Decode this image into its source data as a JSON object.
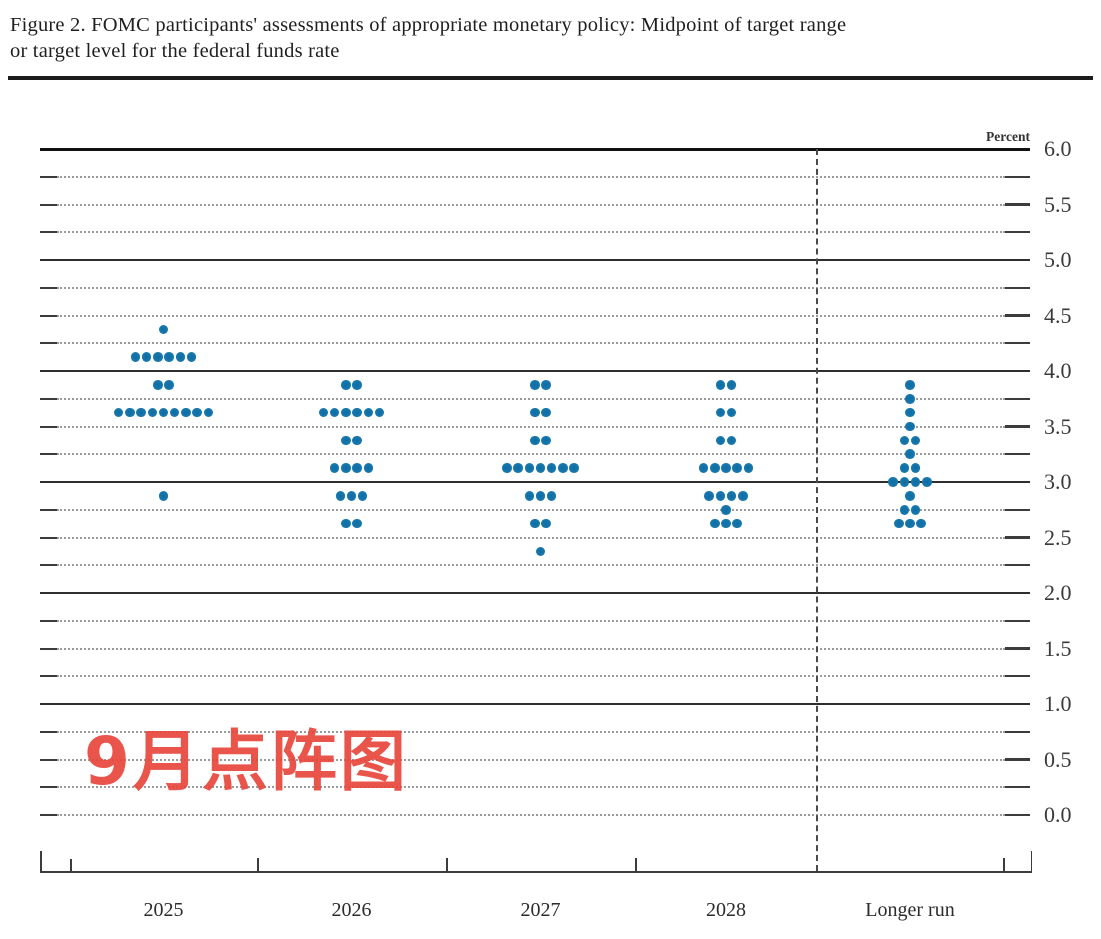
{
  "figure": {
    "title_line1": "Figure 2. FOMC participants' assessments of appropriate monetary policy: Midpoint of target range",
    "title_line2": "or target level for the federal funds rate"
  },
  "overlay": {
    "text": "9月点阵图",
    "color": "#e8463c"
  },
  "chart_data": {
    "type": "scatter",
    "title": "FOMC dot plot — midpoint of target range or target level for the federal funds rate",
    "unit_label": "Percent",
    "ylabel_side": "right",
    "ylim": [
      0.0,
      6.0
    ],
    "ytick_step": 0.5,
    "ytick_labels": [
      "6.0",
      "5.5",
      "5.0",
      "4.5",
      "4.0",
      "3.5",
      "3.0",
      "2.5",
      "2.0",
      "1.5",
      "1.0",
      "0.5",
      "0.0"
    ],
    "grid_step": 0.25,
    "solid_gridlines": [
      6.0,
      5.0,
      4.0,
      3.0,
      2.0,
      1.0
    ],
    "grid_on": true,
    "legend": "none",
    "separator_after_category": "2028",
    "dot_color": "#1a79ad",
    "categories": [
      "2025",
      "2026",
      "2027",
      "2028",
      "Longer run"
    ],
    "series": [
      {
        "category": "2025",
        "dots": [
          {
            "rate": 4.375,
            "count": 1
          },
          {
            "rate": 4.125,
            "count": 6
          },
          {
            "rate": 3.875,
            "count": 2
          },
          {
            "rate": 3.625,
            "count": 9
          },
          {
            "rate": 2.875,
            "count": 1
          }
        ]
      },
      {
        "category": "2026",
        "dots": [
          {
            "rate": 3.875,
            "count": 2
          },
          {
            "rate": 3.625,
            "count": 6
          },
          {
            "rate": 3.375,
            "count": 2
          },
          {
            "rate": 3.125,
            "count": 4
          },
          {
            "rate": 2.875,
            "count": 3
          },
          {
            "rate": 2.625,
            "count": 2
          }
        ]
      },
      {
        "category": "2027",
        "dots": [
          {
            "rate": 3.875,
            "count": 2
          },
          {
            "rate": 3.625,
            "count": 2
          },
          {
            "rate": 3.375,
            "count": 2
          },
          {
            "rate": 3.125,
            "count": 7
          },
          {
            "rate": 2.875,
            "count": 3
          },
          {
            "rate": 2.625,
            "count": 2
          },
          {
            "rate": 2.375,
            "count": 1
          }
        ]
      },
      {
        "category": "2028",
        "dots": [
          {
            "rate": 3.875,
            "count": 2
          },
          {
            "rate": 3.625,
            "count": 2
          },
          {
            "rate": 3.375,
            "count": 2
          },
          {
            "rate": 3.125,
            "count": 5
          },
          {
            "rate": 2.875,
            "count": 4
          },
          {
            "rate": 2.75,
            "count": 1
          },
          {
            "rate": 2.625,
            "count": 3
          }
        ]
      },
      {
        "category": "Longer run",
        "dots": [
          {
            "rate": 3.875,
            "count": 1
          },
          {
            "rate": 3.75,
            "count": 1
          },
          {
            "rate": 3.625,
            "count": 1
          },
          {
            "rate": 3.5,
            "count": 1
          },
          {
            "rate": 3.375,
            "count": 2
          },
          {
            "rate": 3.25,
            "count": 1
          },
          {
            "rate": 3.125,
            "count": 2
          },
          {
            "rate": 3.0,
            "count": 4
          },
          {
            "rate": 2.875,
            "count": 1
          },
          {
            "rate": 2.75,
            "count": 2
          },
          {
            "rate": 2.625,
            "count": 3
          }
        ]
      }
    ]
  }
}
